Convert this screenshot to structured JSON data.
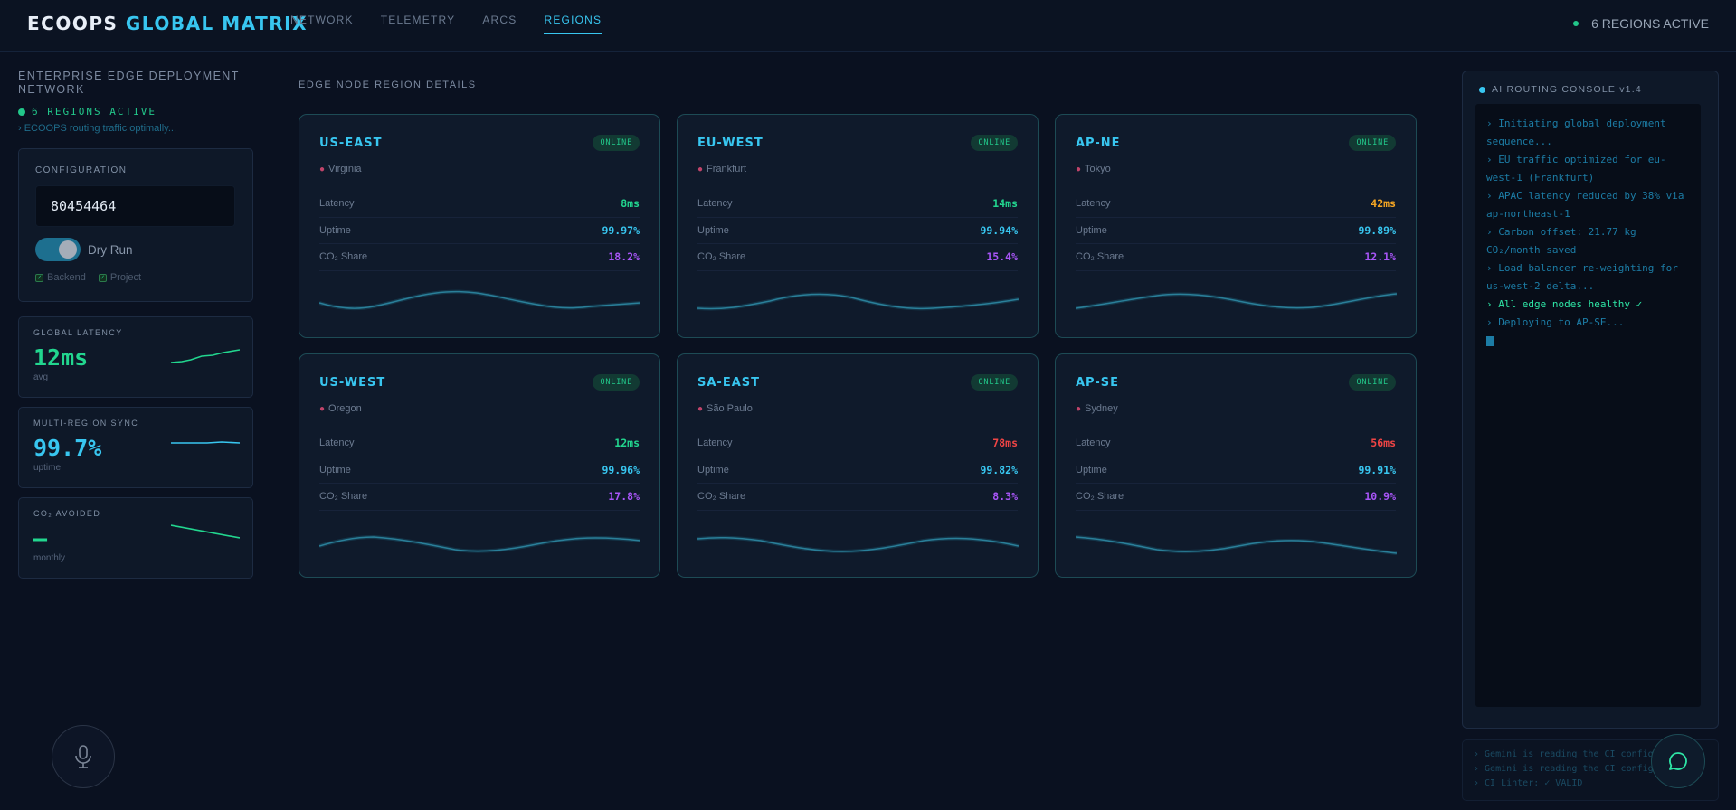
{
  "app": {
    "brand_primary": "ECOOPS",
    "brand_accent": "GLOBAL MATRIX",
    "status": "6 REGIONS ACTIVE"
  },
  "nav": {
    "items": [
      {
        "label": "NETWORK",
        "active": false
      },
      {
        "label": "TELEMETRY",
        "active": false
      },
      {
        "label": "ARCS",
        "active": false
      },
      {
        "label": "REGIONS",
        "active": true
      }
    ]
  },
  "sidebar": {
    "title": "ENTERPRISE EDGE DEPLOYMENT NETWORK",
    "active": "6 REGIONS ACTIVE",
    "message": "› ECOOPS routing traffic optimally...",
    "config": {
      "label": "CONFIGURATION",
      "input_value": "80454464",
      "toggle_label": "Dry Run",
      "toggle_on": true,
      "checkboxes": [
        {
          "label": "Backend",
          "checked": true
        },
        {
          "label": "Project",
          "checked": true
        }
      ]
    },
    "metrics": [
      {
        "label": "GLOBAL LATENCY",
        "value": "12ms",
        "sub": "avg",
        "color": "#22d68f"
      },
      {
        "label": "MULTI-REGION SYNC",
        "value": "99.7%",
        "sub": "uptime",
        "color": "#38c6f0"
      },
      {
        "label": "CO₂ AVOIDED",
        "value": "—",
        "sub": "monthly",
        "color": "#22d68f"
      }
    ]
  },
  "main": {
    "section_title": "EDGE NODE REGION DETAILS",
    "row_labels": {
      "latency": "Latency",
      "uptime": "Uptime",
      "co2": "CO₂ Share"
    },
    "regions": [
      {
        "name": "US-EAST",
        "status": "ONLINE",
        "location": "Virginia",
        "latency": "8ms",
        "latency_color": "#22d68f",
        "uptime": "99.97%",
        "co2": "18.2%"
      },
      {
        "name": "EU-WEST",
        "status": "ONLINE",
        "location": "Frankfurt",
        "latency": "14ms",
        "latency_color": "#22d68f",
        "uptime": "99.94%",
        "co2": "15.4%"
      },
      {
        "name": "AP-NE",
        "status": "ONLINE",
        "location": "Tokyo",
        "latency": "42ms",
        "latency_color": "#f5a623",
        "uptime": "99.89%",
        "co2": "12.1%"
      },
      {
        "name": "US-WEST",
        "status": "ONLINE",
        "location": "Oregon",
        "latency": "12ms",
        "latency_color": "#22d68f",
        "uptime": "99.96%",
        "co2": "17.8%"
      },
      {
        "name": "SA-EAST",
        "status": "ONLINE",
        "location": "São Paulo",
        "latency": "78ms",
        "latency_color": "#f04545",
        "uptime": "99.82%",
        "co2": "8.3%"
      },
      {
        "name": "AP-SE",
        "status": "ONLINE",
        "location": "Sydney",
        "latency": "56ms",
        "latency_color": "#f04545",
        "uptime": "99.91%",
        "co2": "10.9%"
      }
    ]
  },
  "console": {
    "title": "AI ROUTING CONSOLE v1.4",
    "lines": [
      {
        "text": "› Initiating global deployment sequence...",
        "ok": false
      },
      {
        "text": "› EU traffic optimized for eu-west-1 (Frankfurt)",
        "ok": false
      },
      {
        "text": "› APAC latency reduced by 38% via ap-northeast-1",
        "ok": false
      },
      {
        "text": "› Carbon offset: 21.77 kg CO₂/month saved",
        "ok": false
      },
      {
        "text": "› Load balancer re-weighting for us-west-2 delta...",
        "ok": false
      },
      {
        "text": "› All edge nodes healthy ✓",
        "ok": true
      },
      {
        "text": "› Deploying to AP-SE...",
        "ok": false
      }
    ]
  },
  "ci_log": [
    "› Gemini is reading the CI config...",
    "› Gemini is reading the CI config...",
    "› CI Linter: ✓ VALID"
  ],
  "colors": {
    "accent": "#38c6f0",
    "success": "#22c78a",
    "warning": "#f5a623",
    "danger": "#f04545",
    "co2": "#a855f7"
  }
}
